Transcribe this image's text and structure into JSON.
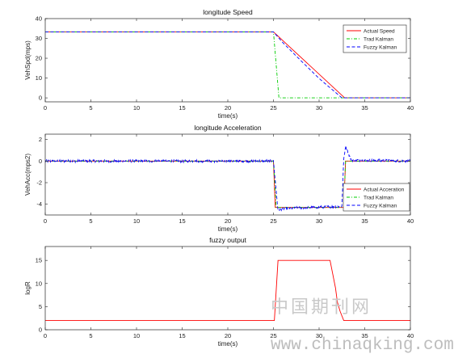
{
  "watermark": {
    "chinese": "中国期刊网",
    "url": "www.chinaqking.com"
  },
  "chart_data": [
    {
      "type": "line",
      "title": "longitude Speed",
      "xlabel": "time(s)",
      "ylabel": "VehSpd(mps)",
      "xlim": [
        0,
        40
      ],
      "ylim": [
        -2,
        40
      ],
      "xticks": [
        "0",
        "5",
        "10",
        "15",
        "20",
        "25",
        "30",
        "35",
        "40"
      ],
      "yticks": [
        "0",
        "10",
        "20",
        "30",
        "40"
      ],
      "legend": "top-right",
      "grid": false,
      "series": [
        {
          "name": "Actual Speed",
          "color": "#ff0000",
          "dash": "solid",
          "x": [
            0,
            25,
            32.8,
            40
          ],
          "y": [
            33.3,
            33.3,
            0,
            0
          ]
        },
        {
          "name": "Trad Kalman",
          "color": "#00cc00",
          "dash": "dashdot",
          "x": [
            0,
            25,
            25.6,
            40
          ],
          "y": [
            33.3,
            33.3,
            0,
            0
          ]
        },
        {
          "name": "Fuzzy Kalman",
          "color": "#0000ff",
          "dash": "dashed",
          "x": [
            0,
            25,
            26,
            28,
            30,
            32.5,
            40
          ],
          "y": [
            33.3,
            33.3,
            28.0,
            18.8,
            9.8,
            0,
            0
          ]
        }
      ]
    },
    {
      "type": "line",
      "title": "longitude Acceleration",
      "xlabel": "time(s)",
      "ylabel": "VehAcc(mps2)",
      "xlim": [
        0,
        40
      ],
      "ylim": [
        -5,
        2.5
      ],
      "xticks": [
        "0",
        "5",
        "10",
        "15",
        "20",
        "25",
        "30",
        "35",
        "40"
      ],
      "yticks": [
        "-4",
        "-2",
        "0",
        "2"
      ],
      "legend": "bottom-right",
      "grid": false,
      "series": [
        {
          "name": "Actual Acceration",
          "color": "#ff0000",
          "dash": "solid",
          "x": [
            0,
            25,
            25.2,
            32.7,
            32.9,
            40
          ],
          "y": [
            0,
            0,
            -4.3,
            -4.3,
            0,
            0
          ]
        },
        {
          "name": "Trad Kalman",
          "color": "#00cc00",
          "dash": "dashdot",
          "x": [
            0,
            25,
            25.3,
            32.7,
            32.9,
            40
          ],
          "y": [
            0,
            0,
            -4.3,
            -4.3,
            0,
            0
          ]
        },
        {
          "name": "Fuzzy Kalman",
          "color": "#0000ff",
          "dash": "dashed",
          "x": [
            0,
            25,
            25.5,
            26,
            32.5,
            32.7,
            32.9,
            33.5,
            40
          ],
          "y": [
            0,
            0,
            -4.6,
            -4.4,
            -4.2,
            0.2,
            1.4,
            0.1,
            0
          ],
          "noise_amplitude": 0.12
        }
      ]
    },
    {
      "type": "line",
      "title": "fuzzy output",
      "xlabel": "time(s)",
      "ylabel": "logR",
      "xlim": [
        0,
        40
      ],
      "ylim": [
        0,
        18
      ],
      "xticks": [
        "0",
        "5",
        "10",
        "15",
        "20",
        "25",
        "30",
        "35",
        "40"
      ],
      "yticks": [
        "0",
        "5",
        "10",
        "15"
      ],
      "grid": false,
      "series": [
        {
          "color": "#ff0000",
          "dash": "solid",
          "x": [
            0,
            25.1,
            25.5,
            31.2,
            31.5,
            31.8,
            32.0,
            32.3,
            32.7,
            40
          ],
          "y": [
            2,
            2,
            15,
            15,
            12,
            9,
            6,
            4,
            2,
            2
          ]
        }
      ]
    }
  ]
}
